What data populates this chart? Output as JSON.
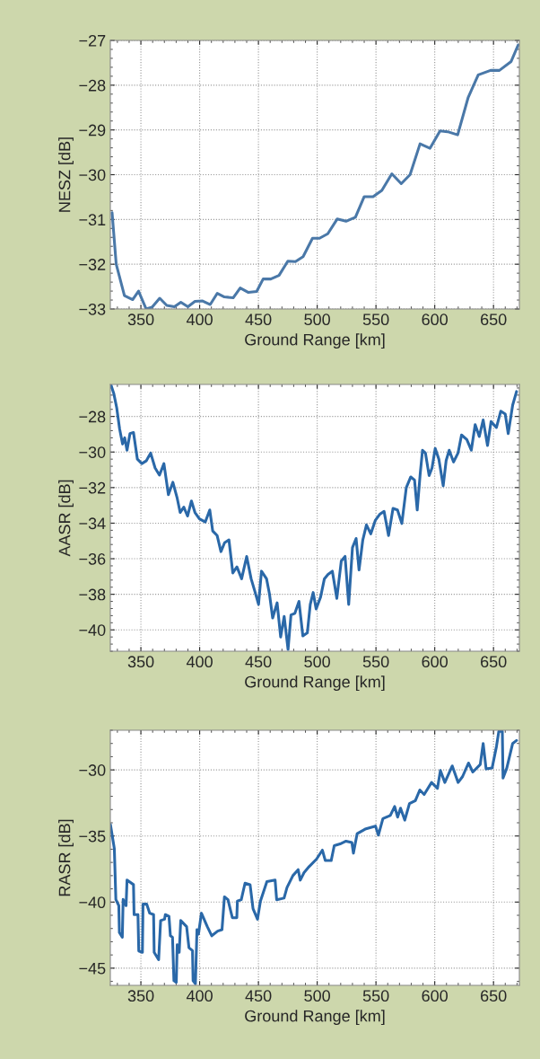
{
  "chart_data": [
    {
      "type": "line",
      "xlabel": "Ground Range [km]",
      "ylabel": "NESZ [dB]",
      "xlim": [
        324,
        672
      ],
      "ylim": [
        -33,
        -27
      ],
      "xticks": [
        350,
        400,
        450,
        500,
        550,
        600,
        650
      ],
      "yticks": [
        -33,
        -32,
        -31,
        -30,
        -29,
        -28,
        -27
      ],
      "grid": true,
      "line_style": "solid",
      "x": [
        325.5,
        329,
        336,
        343,
        348,
        354.5,
        359.5,
        366,
        372,
        378.5,
        384,
        390,
        396,
        402.5,
        409,
        415,
        421,
        428.5,
        434.5,
        441.5,
        448.5,
        454,
        460.5,
        467.5,
        475,
        481.5,
        488,
        496,
        502,
        509,
        517,
        524.5,
        532.5,
        540,
        547.5,
        555,
        563.5,
        571.5,
        579,
        587.5,
        596,
        604.5,
        611,
        619.5,
        628.5,
        637,
        647.5,
        655,
        665,
        671
      ],
      "series": [
        {
          "color": "#4a78a8",
          "values": [
            -30.85,
            -32.0,
            -32.7,
            -32.79,
            -32.6,
            -33.0,
            -32.96,
            -32.76,
            -32.92,
            -32.95,
            -32.85,
            -32.95,
            -32.83,
            -32.82,
            -32.9,
            -32.65,
            -32.73,
            -32.75,
            -32.53,
            -32.63,
            -32.61,
            -32.33,
            -32.33,
            -32.25,
            -31.93,
            -31.94,
            -31.83,
            -31.42,
            -31.42,
            -31.32,
            -30.99,
            -31.04,
            -30.95,
            -30.49,
            -30.49,
            -30.35,
            -29.98,
            -30.2,
            -30.0,
            -29.31,
            -29.41,
            -29.02,
            -29.04,
            -29.11,
            -28.27,
            -27.77,
            -27.67,
            -27.67,
            -27.47,
            -27.1
          ]
        }
      ]
    },
    {
      "type": "line",
      "xlabel": "Ground Range [km]",
      "ylabel": "AASR [dB]",
      "xlim": [
        324,
        672
      ],
      "ylim": [
        -41.2,
        -26.2
      ],
      "xticks": [
        350,
        400,
        450,
        500,
        550,
        600,
        650
      ],
      "yticks": [
        -40,
        -38,
        -36,
        -34,
        -32,
        -30,
        -28
      ],
      "grid": true,
      "line_style": "solid",
      "x": [
        324.4,
        326.9,
        329.4,
        331.9,
        334.4,
        336.2,
        338.2,
        340.7,
        343.7,
        347.0,
        350.8,
        354.5,
        358.3,
        362.1,
        365.8,
        369.6,
        373.4,
        377.2,
        380.9,
        383.4,
        386.5,
        389.7,
        393.0,
        396.0,
        399.8,
        404.8,
        408.6,
        411.1,
        414.9,
        418.1,
        421.2,
        424.9,
        428.2,
        431.7,
        435.7,
        440.0,
        443.8,
        446.8,
        450.1,
        452.6,
        456.9,
        459.4,
        462.1,
        465.9,
        468.9,
        471.9,
        475.2,
        477.7,
        481.0,
        484.5,
        487.8,
        491.6,
        494.1,
        496.6,
        499.1,
        502.9,
        506.1,
        509.2,
        512.9,
        516.7,
        520.5,
        523.7,
        526.8,
        530.0,
        533.1,
        535.6,
        538.8,
        541.9,
        545.6,
        549.4,
        553.2,
        556.9,
        560.7,
        564.5,
        568.3,
        572.0,
        575.8,
        579.6,
        582.8,
        585.1,
        587.6,
        589.6,
        592.1,
        595.2,
        597.7,
        600.4,
        603.5,
        607.2,
        609.7,
        612.3,
        616.0,
        619.8,
        622.8,
        627.3,
        631.1,
        634.4,
        637.9,
        641.2,
        644.9,
        647.9,
        652.5,
        656.2,
        660.0,
        662.5,
        666.3,
        669.6
      ],
      "series": [
        {
          "color": "#2a68a8",
          "values": [
            -26.2,
            -26.7,
            -27.5,
            -28.7,
            -29.55,
            -29.2,
            -29.9,
            -28.96,
            -28.9,
            -30.4,
            -30.65,
            -30.5,
            -30.06,
            -30.9,
            -31.3,
            -30.65,
            -32.4,
            -31.7,
            -32.6,
            -33.4,
            -33.1,
            -33.6,
            -32.75,
            -33.4,
            -33.76,
            -33.93,
            -33.26,
            -34.44,
            -34.7,
            -35.6,
            -35.1,
            -34.94,
            -36.8,
            -36.46,
            -37.13,
            -35.87,
            -37.13,
            -37.8,
            -38.57,
            -36.7,
            -37.13,
            -37.98,
            -39.33,
            -38.48,
            -40.4,
            -39.24,
            -41.1,
            -39.16,
            -39.07,
            -38.4,
            -40.34,
            -40.17,
            -38.57,
            -37.9,
            -38.82,
            -38.15,
            -37.13,
            -36.88,
            -36.7,
            -38.23,
            -36.12,
            -35.87,
            -38.57,
            -35.37,
            -34.86,
            -36.63,
            -34.94,
            -34.1,
            -34.6,
            -33.85,
            -33.5,
            -33.34,
            -34.7,
            -33.17,
            -33.26,
            -34.02,
            -32.0,
            -31.4,
            -31.57,
            -33.26,
            -31.24,
            -29.9,
            -30.06,
            -31.32,
            -30.9,
            -29.8,
            -30.4,
            -31.9,
            -30.48,
            -29.9,
            -30.56,
            -30.06,
            -29.04,
            -29.3,
            -29.9,
            -28.46,
            -29.13,
            -28.2,
            -29.63,
            -28.29,
            -28.62,
            -27.7,
            -27.87,
            -28.96,
            -27.36,
            -26.6
          ]
        }
      ]
    },
    {
      "type": "line",
      "xlabel": "Ground Range [km]",
      "ylabel": "RASR [dB]",
      "xlim": [
        324,
        672
      ],
      "ylim": [
        -46.3,
        -27
      ],
      "xticks": [
        350,
        400,
        450,
        500,
        550,
        600,
        650
      ],
      "yticks": [
        -45,
        -40,
        -35,
        -30
      ],
      "grid": true,
      "line_style": "solid",
      "x": [
        324.1,
        327.4,
        328.7,
        331.2,
        331.7,
        334.2,
        334.9,
        337.4,
        338.2,
        343.7,
        344.2,
        347.5,
        348.2,
        351.3,
        351.8,
        355.0,
        357.5,
        360.8,
        361.3,
        365.1,
        366.8,
        370.1,
        370.8,
        373.9,
        375.1,
        376.9,
        378.1,
        380.1,
        380.9,
        382.6,
        383.9,
        388.9,
        390.9,
        393.9,
        394.4,
        396.4,
        397.7,
        399.0,
        401.5,
        406.5,
        410.3,
        415.3,
        419.0,
        421.1,
        424.1,
        425.3,
        427.8,
        431.6,
        432.1,
        435.4,
        438.6,
        442.9,
        445.4,
        449.2,
        451.7,
        457.2,
        464.2,
        465.5,
        471.8,
        474.3,
        479.3,
        483.8,
        485.6,
        488.8,
        493.1,
        499.4,
        504.4,
        506.9,
        511.9,
        514.5,
        519.5,
        524.5,
        529.5,
        530.8,
        534.0,
        540.8,
        549.6,
        552.1,
        555.9,
        562.2,
        565.9,
        568.4,
        570.9,
        574.5,
        578.5,
        583.5,
        587.3,
        591.0,
        597.3,
        602.3,
        604.8,
        608.6,
        614.9,
        619.9,
        623.7,
        628.7,
        632.4,
        638.7,
        641.2,
        643.7,
        648.8,
        652.5,
        654.5,
        657.5,
        658.1,
        661.3,
        666.3,
        669.6
      ],
      "series": [
        {
          "color": "#2a68a8",
          "values": [
            -34.14,
            -35.95,
            -39.8,
            -40.27,
            -42.3,
            -42.66,
            -39.8,
            -40.27,
            -38.34,
            -38.68,
            -40.95,
            -40.95,
            -43.7,
            -43.8,
            -40.16,
            -40.16,
            -40.84,
            -40.95,
            -43.8,
            -44.36,
            -41.4,
            -41.3,
            -40.95,
            -41.07,
            -42.55,
            -42.66,
            -45.95,
            -46.07,
            -43.23,
            -43.8,
            -41.4,
            -41.86,
            -43.45,
            -43.68,
            -45.95,
            -46.18,
            -42.09,
            -42.43,
            -40.84,
            -41.86,
            -42.55,
            -42.2,
            -42.09,
            -39.6,
            -39.82,
            -40.27,
            -41.18,
            -41.18,
            -39.93,
            -39.82,
            -38.57,
            -38.68,
            -40.5,
            -41.3,
            -39.93,
            -38.45,
            -38.34,
            -39.82,
            -39.7,
            -38.9,
            -38.0,
            -37.55,
            -38.34,
            -37.77,
            -37.32,
            -36.75,
            -36.07,
            -36.86,
            -36.86,
            -35.73,
            -35.6,
            -35.39,
            -35.5,
            -36.3,
            -34.82,
            -34.48,
            -34.25,
            -34.93,
            -33.68,
            -33.45,
            -32.77,
            -33.57,
            -32.9,
            -33.8,
            -32.55,
            -32.32,
            -31.52,
            -31.86,
            -30.95,
            -31.4,
            -30.05,
            -30.95,
            -29.7,
            -30.95,
            -30.5,
            -29.48,
            -30.16,
            -29.59,
            -28.0,
            -29.93,
            -29.86,
            -28.23,
            -27.09,
            -27.09,
            -30.61,
            -29.86,
            -28.0,
            -27.77
          ]
        }
      ]
    }
  ]
}
